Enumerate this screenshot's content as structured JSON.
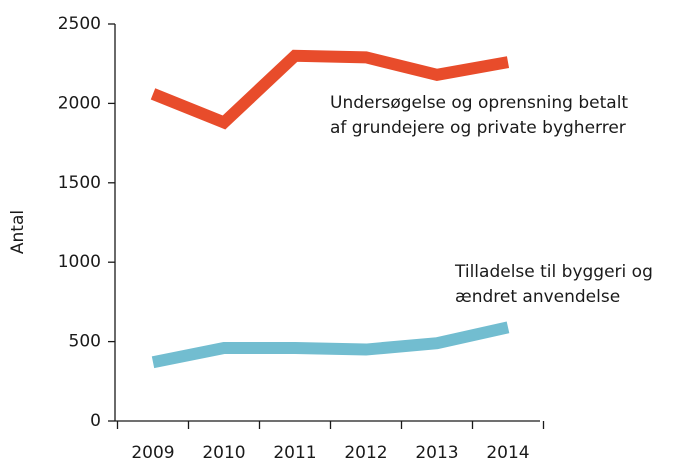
{
  "chart_data": {
    "type": "line",
    "y_label": "Antal",
    "categories": [
      "2009",
      "2010",
      "2011",
      "2012",
      "2013",
      "2014"
    ],
    "series": [
      {
        "label": [
          "Undersøgelse og oprensning betalt",
          "af grundejere og private bygherrer"
        ],
        "color": "#e84c2b",
        "values": [
          2060,
          1880,
          2300,
          2290,
          2180,
          2260
        ]
      },
      {
        "label": [
          "Tilladelse til byggeri og",
          "ændret anvendelse"
        ],
        "color": "#72bdd0",
        "values": [
          370,
          460,
          460,
          450,
          490,
          590
        ]
      }
    ],
    "ylim": [
      0,
      2500
    ],
    "yticks": [
      0,
      500,
      1000,
      1500,
      2000,
      2500
    ],
    "grid": false
  }
}
